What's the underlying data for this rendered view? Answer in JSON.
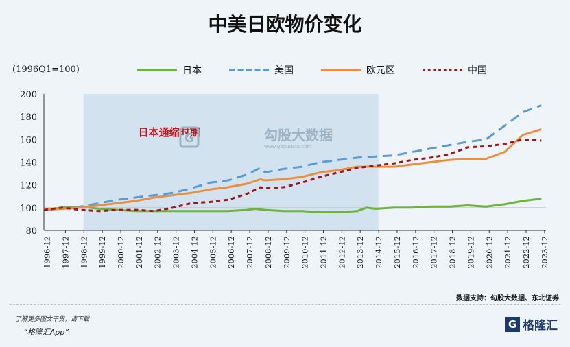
{
  "header": {
    "title": "中美日欧物价变化"
  },
  "footer": {
    "source": "数据支持：勾股大数据、东北证券",
    "line1": "了解更多图文干货，请下载",
    "line2": "“格隆汇App”",
    "brand_logo_letter": "G",
    "brand_name": "格隆汇"
  },
  "colors": {
    "japan": "#6db33f",
    "us": "#5b9bd5",
    "eurozone": "#e8903f",
    "china": "#a0141c",
    "shade": "#d2e3ef",
    "baseline": "#c0c0c0"
  },
  "chart_data": {
    "type": "line",
    "unit_label": "(1996Q1=100)",
    "x_tick_labels": [
      "1996-12",
      "1997-12",
      "1998-12",
      "1999-12",
      "2000-12",
      "2001-12",
      "2002-12",
      "2003-12",
      "2004-12",
      "2005-12",
      "2006-12",
      "2007-12",
      "2008-12",
      "2009-12",
      "2010-12",
      "2011-12",
      "2012-12",
      "2013-12",
      "2014-12",
      "2015-12",
      "2016-12",
      "2017-12",
      "2018-12",
      "2019-12",
      "2020-12",
      "2021-12",
      "2022-12",
      "2023-12"
    ],
    "x_range": [
      1996.75,
      2024.0
    ],
    "ylim": [
      80,
      200
    ],
    "yticks": [
      80,
      100,
      120,
      140,
      160,
      180,
      200
    ],
    "reference_line": 100,
    "shaded_period": {
      "label": "日本通缩时期",
      "start": 1998.9,
      "end": 2014.9
    },
    "watermark": {
      "text": "勾股大数据",
      "subtext": "www.gogudata.com",
      "logo_letter": "G"
    },
    "series": [
      {
        "name": "日本",
        "key": "japan",
        "dash": "solid",
        "points": [
          [
            1996.75,
            98
          ],
          [
            1997.75,
            100
          ],
          [
            1998.75,
            101
          ],
          [
            1999.75,
            99
          ],
          [
            2000.75,
            98
          ],
          [
            2001.75,
            97
          ],
          [
            2002.75,
            97
          ],
          [
            2003.75,
            97
          ],
          [
            2004.75,
            97
          ],
          [
            2005.75,
            97
          ],
          [
            2006.75,
            97
          ],
          [
            2007.75,
            98
          ],
          [
            2008.25,
            99
          ],
          [
            2008.75,
            98
          ],
          [
            2009.75,
            97
          ],
          [
            2010.75,
            97
          ],
          [
            2011.75,
            96
          ],
          [
            2012.75,
            96
          ],
          [
            2013.75,
            97
          ],
          [
            2014.25,
            100
          ],
          [
            2014.75,
            99
          ],
          [
            2015.75,
            100
          ],
          [
            2016.75,
            100
          ],
          [
            2017.75,
            101
          ],
          [
            2018.75,
            101
          ],
          [
            2019.75,
            102
          ],
          [
            2020.75,
            101
          ],
          [
            2021.75,
            103
          ],
          [
            2022.75,
            106
          ],
          [
            2023.75,
            108
          ]
        ]
      },
      {
        "name": "美国",
        "key": "us",
        "dash": "long-dash",
        "points": [
          [
            1996.75,
            98
          ],
          [
            1997.75,
            99
          ],
          [
            1998.75,
            101
          ],
          [
            1999.75,
            104
          ],
          [
            2000.75,
            107
          ],
          [
            2001.75,
            109
          ],
          [
            2002.75,
            111
          ],
          [
            2003.75,
            113
          ],
          [
            2004.75,
            117
          ],
          [
            2005.75,
            122
          ],
          [
            2006.75,
            124
          ],
          [
            2007.75,
            129
          ],
          [
            2008.5,
            135
          ],
          [
            2008.75,
            131
          ],
          [
            2009.75,
            134
          ],
          [
            2010.75,
            136
          ],
          [
            2011.75,
            140
          ],
          [
            2012.75,
            142
          ],
          [
            2013.75,
            144
          ],
          [
            2014.75,
            145
          ],
          [
            2015.75,
            146
          ],
          [
            2016.75,
            149
          ],
          [
            2017.75,
            152
          ],
          [
            2018.75,
            155
          ],
          [
            2019.75,
            158
          ],
          [
            2020.75,
            160
          ],
          [
            2021.75,
            172
          ],
          [
            2022.75,
            184
          ],
          [
            2023.75,
            190
          ]
        ]
      },
      {
        "name": "欧元区",
        "key": "eurozone",
        "dash": "solid",
        "points": [
          [
            1996.75,
            98
          ],
          [
            1997.75,
            99
          ],
          [
            1998.75,
            100
          ],
          [
            1999.75,
            102
          ],
          [
            2000.75,
            104
          ],
          [
            2001.75,
            106
          ],
          [
            2002.75,
            109
          ],
          [
            2003.75,
            111
          ],
          [
            2004.75,
            113
          ],
          [
            2005.75,
            116
          ],
          [
            2006.75,
            118
          ],
          [
            2007.75,
            121
          ],
          [
            2008.5,
            125
          ],
          [
            2008.75,
            124
          ],
          [
            2009.75,
            125
          ],
          [
            2010.75,
            127
          ],
          [
            2011.75,
            131
          ],
          [
            2012.75,
            133
          ],
          [
            2013.75,
            136
          ],
          [
            2014.75,
            136
          ],
          [
            2015.75,
            136
          ],
          [
            2016.75,
            138
          ],
          [
            2017.75,
            140
          ],
          [
            2018.75,
            142
          ],
          [
            2019.75,
            143
          ],
          [
            2020.75,
            143
          ],
          [
            2021.75,
            149
          ],
          [
            2022.75,
            164
          ],
          [
            2023.75,
            169
          ]
        ]
      },
      {
        "name": "中国",
        "key": "china",
        "dash": "short-dash",
        "points": [
          [
            1996.75,
            98
          ],
          [
            1997.75,
            100
          ],
          [
            1998.75,
            98
          ],
          [
            1999.75,
            97
          ],
          [
            2000.75,
            98
          ],
          [
            2001.75,
            98
          ],
          [
            2002.75,
            97
          ],
          [
            2003.75,
            100
          ],
          [
            2004.75,
            104
          ],
          [
            2005.75,
            105
          ],
          [
            2006.75,
            107
          ],
          [
            2007.75,
            112
          ],
          [
            2008.5,
            118
          ],
          [
            2008.75,
            117
          ],
          [
            2009.75,
            118
          ],
          [
            2010.75,
            122
          ],
          [
            2011.75,
            127
          ],
          [
            2012.75,
            131
          ],
          [
            2013.75,
            135
          ],
          [
            2014.75,
            137
          ],
          [
            2015.75,
            139
          ],
          [
            2016.75,
            142
          ],
          [
            2017.75,
            144
          ],
          [
            2018.75,
            147
          ],
          [
            2019.75,
            153
          ],
          [
            2020.75,
            154
          ],
          [
            2021.75,
            156
          ],
          [
            2022.75,
            160
          ],
          [
            2023.75,
            159
          ]
        ]
      }
    ]
  }
}
